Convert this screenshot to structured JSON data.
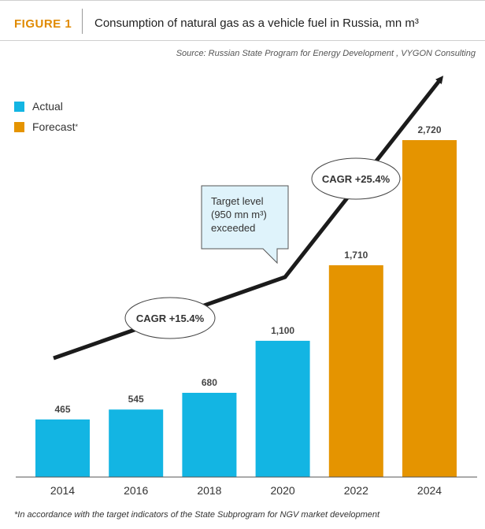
{
  "header": {
    "figure_label": "FIGURE 1",
    "title": "Consumption of natural gas as a vehicle fuel in Russia, mn m³"
  },
  "source": "Source: Russian State Program for Energy Development , VYGON Consulting",
  "footnote": "*In accordance with the target indicators of the State Subprogram for NGV market development",
  "colors": {
    "actual": "#13b5e3",
    "forecast": "#e59400",
    "arrow": "#1b1b1b",
    "callout_fill": "#dff3fb"
  },
  "legend": [
    {
      "label": "Actual",
      "sup": "",
      "color": "#13b5e3"
    },
    {
      "label": "Forecast",
      "sup": "*",
      "color": "#e59400"
    }
  ],
  "annotations": {
    "cagr_1": "CAGR +15.4%",
    "cagr_2": "CAGR +25.4%",
    "target_line1": "Target level",
    "target_line2": "(950 mn m³)",
    "target_line3": "exceeded"
  },
  "chart_data": {
    "type": "bar",
    "categories": [
      "2014",
      "2016",
      "2018",
      "2020",
      "2022",
      "2024"
    ],
    "values": [
      465,
      545,
      680,
      1100,
      1710,
      2720
    ],
    "value_labels": [
      "465",
      "545",
      "680",
      "1,100",
      "1,710",
      "2,720"
    ],
    "kinds": [
      "actual",
      "actual",
      "actual",
      "actual",
      "forecast",
      "forecast"
    ],
    "title": "Consumption of natural gas as a vehicle fuel in Russia, mn m³",
    "xlabel": "",
    "ylabel": "",
    "ylim": [
      0,
      2720
    ],
    "grid": false,
    "legend_position": "top-left"
  }
}
